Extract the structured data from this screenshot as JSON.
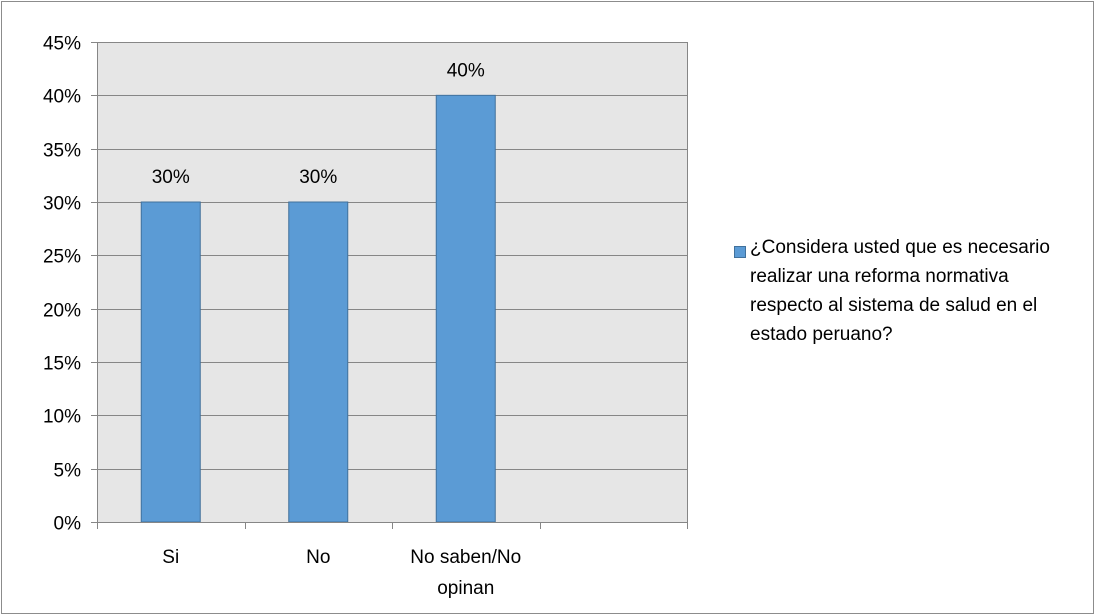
{
  "chart_data": {
    "type": "bar",
    "categories": [
      "Si",
      "No",
      "No saben/No opinan"
    ],
    "series": [
      {
        "name": "¿Considera usted que es necesario realizar una reforma normativa respecto al sistema de salud en el estado peruano?",
        "values": [
          30,
          30,
          40
        ],
        "data_labels": [
          "30%",
          "30%",
          "40%"
        ],
        "color": "#5b9bd5"
      }
    ],
    "title": "",
    "xlabel": "",
    "ylabel": "",
    "ylim": [
      0,
      45
    ],
    "yticks": [
      0,
      5,
      10,
      15,
      20,
      25,
      30,
      35,
      40,
      45
    ],
    "ytick_labels": [
      "0%",
      "5%",
      "10%",
      "15%",
      "20%",
      "25%",
      "30%",
      "35%",
      "40%",
      "45%"
    ],
    "x_slots": 4,
    "grid": true,
    "plot_background": "#e6e6e6",
    "legend_position": "right"
  }
}
